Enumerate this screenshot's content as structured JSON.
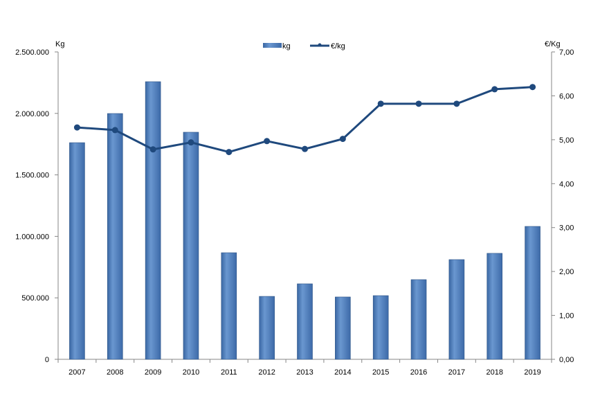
{
  "chart_data": {
    "type": "bar+line",
    "categories": [
      "2007",
      "2008",
      "2009",
      "2010",
      "2011",
      "2012",
      "2013",
      "2014",
      "2015",
      "2016",
      "2017",
      "2018",
      "2019"
    ],
    "series": [
      {
        "name": "kg",
        "type": "bar",
        "axis": "left",
        "color": "#4f81bd",
        "values": [
          1762000,
          1999000,
          2258000,
          1847000,
          867000,
          512000,
          614000,
          507000,
          518000,
          648000,
          811000,
          862000,
          1081000
        ]
      },
      {
        "name": "€/kg",
        "type": "line",
        "axis": "right",
        "color": "#1f497d",
        "values": [
          5.28,
          5.22,
          4.78,
          4.94,
          4.72,
          4.97,
          4.79,
          5.02,
          5.82,
          5.82,
          5.82,
          6.15,
          6.2
        ]
      }
    ],
    "ylabel_left": "Kg",
    "ylabel_right": "€/Kg",
    "ylim_left": [
      0,
      2500000
    ],
    "ylim_right": [
      0,
      7
    ],
    "yticks_left": [
      "0",
      "500.000",
      "1.000.000",
      "1.500.000",
      "2.000.000",
      "2.500.000"
    ],
    "yticks_right": [
      "0,00",
      "1,00",
      "2,00",
      "3,00",
      "4,00",
      "5,00",
      "6,00",
      "7,00"
    ],
    "legend": "top-center",
    "grid": false
  }
}
